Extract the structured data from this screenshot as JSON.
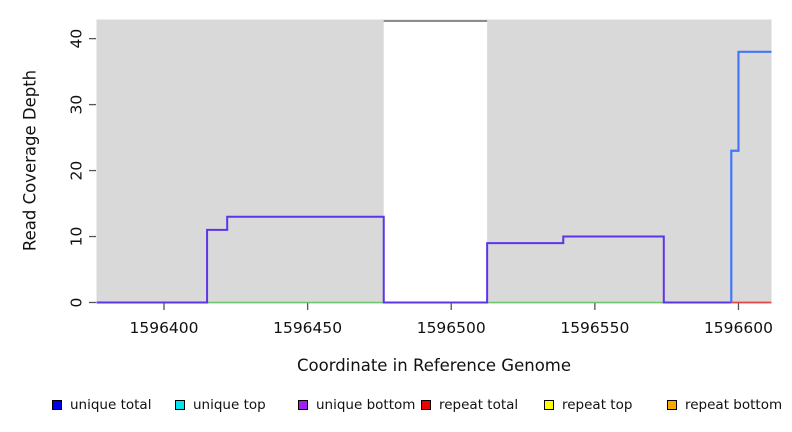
{
  "chart_data": {
    "type": "line",
    "subtype": "step-coverage",
    "title": "",
    "xlabel": "Coordinate in Reference Genome",
    "ylabel": "Read Coverage Depth",
    "plot_bg": "#d9d9d9",
    "tick_color": "#555555",
    "x_range": [
      1596376.5,
      1596611.5
    ],
    "y_range": [
      0,
      42.9
    ],
    "grid": false,
    "x_ticks": [
      {
        "pos": 1596400,
        "label": "1596400"
      },
      {
        "pos": 1596450,
        "label": "1596450"
      },
      {
        "pos": 1596500,
        "label": "1596500"
      },
      {
        "pos": 1596550,
        "label": "1596550"
      },
      {
        "pos": 1596600,
        "label": "1596600"
      }
    ],
    "y_ticks": [
      {
        "pos": 0,
        "label": "0"
      },
      {
        "pos": 10,
        "label": "10"
      },
      {
        "pos": 20,
        "label": "20"
      },
      {
        "pos": 30,
        "label": "30"
      },
      {
        "pos": 40,
        "label": "40"
      }
    ],
    "masked_region": {
      "start": 1596476.5,
      "end": 1596512.5,
      "fill": "#ffffff",
      "border_top_color": "#8c8c8c"
    },
    "series": [
      {
        "name": "baseline-zero-green",
        "color": "#6fc46f",
        "width": 1.6,
        "steps": [
          [
            1596415,
            0
          ]
        ],
        "end": 1596574
      },
      {
        "name": "unique-coverage-steps",
        "color": "#5b35e8",
        "width": 2,
        "steps": [
          [
            1596376.5,
            0
          ],
          [
            1596415,
            11
          ],
          [
            1596422,
            13
          ],
          [
            1596476.5,
            0
          ],
          [
            1596512.5,
            9
          ],
          [
            1596539,
            10
          ],
          [
            1596574,
            0
          ]
        ],
        "end": 1596597.5
      },
      {
        "name": "unique-total-right-peak",
        "color": "#4377f5",
        "width": 2.2,
        "steps": [
          [
            1596597.5,
            0
          ],
          [
            1596597.5,
            23
          ],
          [
            1596600,
            38
          ]
        ],
        "end": 1596611.5
      },
      {
        "name": "repeat-total-right-zero",
        "color": "#e04848",
        "width": 1.8,
        "steps": [
          [
            1596597.5,
            0
          ]
        ],
        "end": 1596611.5
      }
    ],
    "legend": [
      {
        "label": "unique total",
        "color": "#0000ee"
      },
      {
        "label": "unique top",
        "color": "#00e5ee"
      },
      {
        "label": "unique bottom",
        "color": "#a020f0"
      },
      {
        "label": "repeat total",
        "color": "#ee0000"
      },
      {
        "label": "repeat top",
        "color": "#ffff00"
      },
      {
        "label": "repeat bottom",
        "color": "#ffa500"
      }
    ],
    "legend_position": "bottom"
  }
}
